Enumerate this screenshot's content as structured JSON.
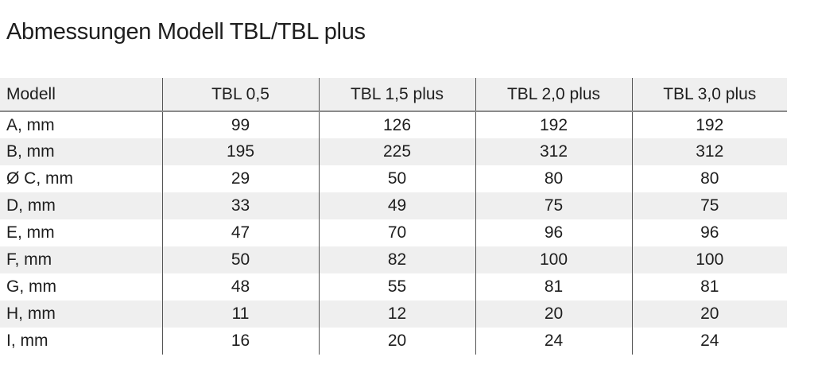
{
  "title": "Abmessungen Modell TBL/TBL plus",
  "table": {
    "headers": [
      "Modell",
      "TBL 0,5",
      "TBL 1,5 plus",
      "TBL 2,0 plus",
      "TBL 3,0 plus"
    ],
    "rows": [
      [
        "A, mm",
        "99",
        "126",
        "192",
        "192"
      ],
      [
        "B, mm",
        "195",
        "225",
        "312",
        "312"
      ],
      [
        "Ø C, mm",
        "29",
        "50",
        "80",
        "80"
      ],
      [
        "D, mm",
        "33",
        "49",
        "75",
        "75"
      ],
      [
        "E, mm",
        "47",
        "70",
        "96",
        "96"
      ],
      [
        "F, mm",
        "50",
        "82",
        "100",
        "100"
      ],
      [
        "G, mm",
        "48",
        "55",
        "81",
        "81"
      ],
      [
        "H, mm",
        "11",
        "12",
        "20",
        "20"
      ],
      [
        "I, mm",
        "16",
        "20",
        "24",
        "24"
      ]
    ]
  }
}
